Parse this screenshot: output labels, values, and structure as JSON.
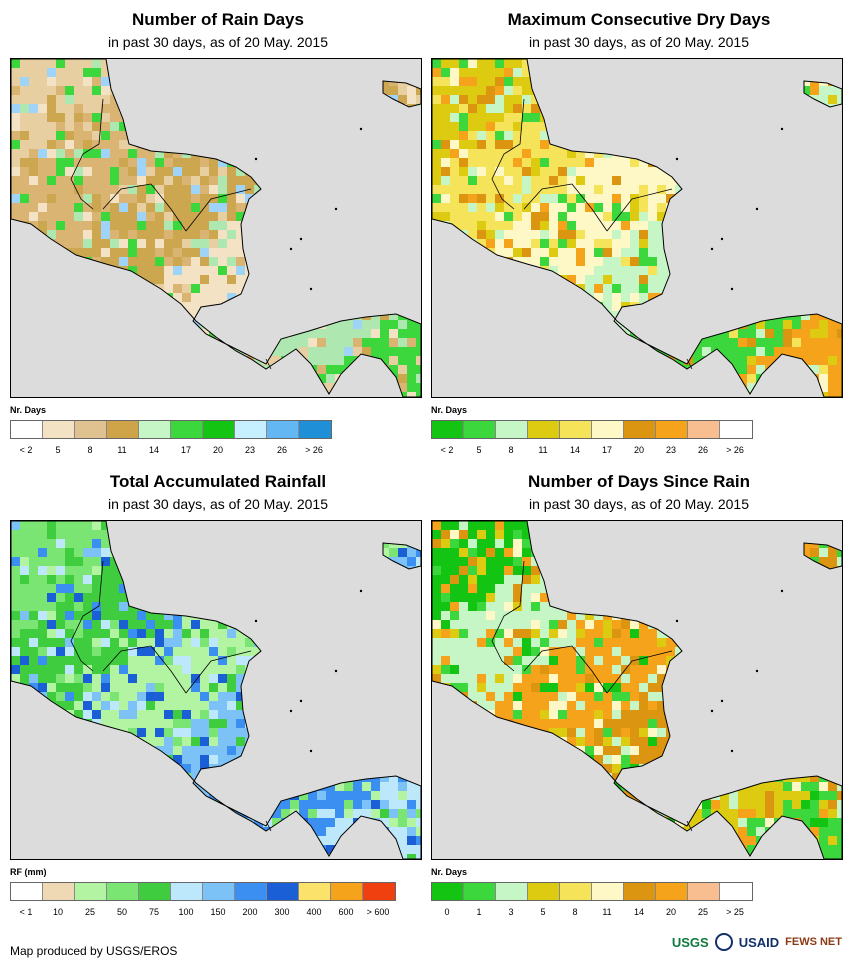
{
  "panels": [
    {
      "title": "Number of Rain Days",
      "subtitle": "in past 30 days, as of 20 May. 2015",
      "legend_title": "Nr. Days",
      "legend_colors": [
        "#ffffff",
        "#f3e2c3",
        "#dfc28f",
        "#cfa449",
        "#c6f6c6",
        "#3cd73c",
        "#13c413",
        "#c6efff",
        "#63b8f3",
        "#1f8fd8"
      ],
      "tick_labels": [
        "< 2",
        "5",
        "8",
        "11",
        "14",
        "17",
        "20",
        "23",
        "26",
        "> 26"
      ],
      "palette": [
        "#e7cfa2",
        "#d9b472",
        "#cda650",
        "#f3e2c3",
        "#aee8b0",
        "#3cd73c",
        "#9fd3f7"
      ]
    },
    {
      "title": "Maximum Consecutive Dry Days",
      "subtitle": "in past 30 days, as of 20 May. 2015",
      "legend_title": "Nr. Days",
      "legend_colors": [
        "#13c413",
        "#3cd73c",
        "#c6f6c6",
        "#dccb10",
        "#f5e35a",
        "#fdf8c6",
        "#dc9510",
        "#f6a31c",
        "#f8be90",
        "#ffffff"
      ],
      "tick_labels": [
        "< 2",
        "5",
        "8",
        "11",
        "14",
        "17",
        "20",
        "23",
        "26",
        "> 26"
      ],
      "palette": [
        "#dccb10",
        "#f5e35a",
        "#fdf8c6",
        "#c6f6c6",
        "#3cd73c",
        "#f6a31c",
        "#dc9510"
      ]
    },
    {
      "title": "Total Accumulated Rainfall",
      "subtitle": "in past 30 days, as of 20 May. 2015",
      "legend_title": "RF (mm)",
      "legend_colors": [
        "#ffffff",
        "#efd8b4",
        "#b2f4a2",
        "#7be573",
        "#3fcd3f",
        "#bde8fb",
        "#7cc2f7",
        "#3a8ff0",
        "#1b5fd6",
        "#fbe26b",
        "#f6a31c",
        "#f04010"
      ],
      "tick_labels": [
        "< 1",
        "10",
        "25",
        "50",
        "75",
        "100",
        "150",
        "200",
        "300",
        "400",
        "600",
        "> 600"
      ],
      "palette": [
        "#7be573",
        "#3fcd3f",
        "#b2f4a2",
        "#7cc2f7",
        "#3a8ff0",
        "#bde8fb",
        "#1b5fd6"
      ]
    },
    {
      "title": "Number of Days Since Rain",
      "subtitle": "in past 30 days, as of 20 May. 2015",
      "legend_title": "Nr. Days",
      "legend_colors": [
        "#13c413",
        "#3cd73c",
        "#c6f6c6",
        "#dccb10",
        "#f5e35a",
        "#fdf8c6",
        "#dc9510",
        "#f6a31c",
        "#f8be90",
        "#ffffff"
      ],
      "tick_labels": [
        "0",
        "1",
        "3",
        "5",
        "8",
        "11",
        "14",
        "20",
        "25",
        "> 25"
      ],
      "palette": [
        "#13c413",
        "#c6f6c6",
        "#f6a31c",
        "#dc9510",
        "#dccb10",
        "#3cd73c",
        "#fdf8c6"
      ]
    }
  ],
  "footer": {
    "credit": "Map produced by USGS/EROS",
    "logos": [
      "USGS",
      "USAID",
      "FEWS NET"
    ]
  }
}
